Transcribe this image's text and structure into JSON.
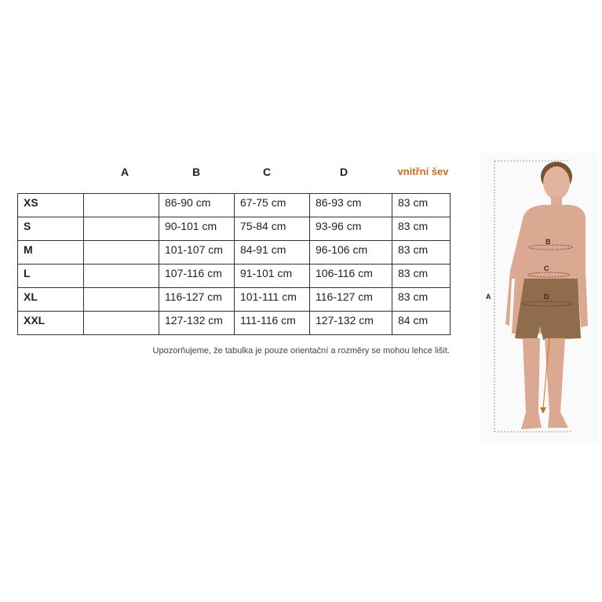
{
  "headers": [
    "A",
    "B",
    "C",
    "D",
    "vnitřní šev"
  ],
  "inseam_color": "#d46a1c",
  "rows": [
    [
      "XS",
      "",
      "86-90 cm",
      "67-75 cm",
      "86-93 cm",
      "83 cm"
    ],
    [
      "S",
      "",
      "90-101 cm",
      "75-84 cm",
      "93-96 cm",
      "83 cm"
    ],
    [
      "M",
      "",
      "101-107 cm",
      "84-91 cm",
      "96-106 cm",
      "83 cm"
    ],
    [
      "L",
      "",
      "107-116 cm",
      "91-101 cm",
      "106-116 cm",
      "83 cm"
    ],
    [
      "XL",
      "",
      "116-127 cm",
      "101-111 cm",
      "116-127 cm",
      "83 cm"
    ],
    [
      "XXL",
      "",
      "127-132 cm",
      "111-116 cm",
      "127-132 cm",
      "84 cm"
    ]
  ],
  "note": "Upozorňujeme, že tabulka je pouze orientační a rozměry se mohou lehce lišit.",
  "figure": {
    "labels": [
      "A",
      "B",
      "C",
      "D"
    ]
  }
}
